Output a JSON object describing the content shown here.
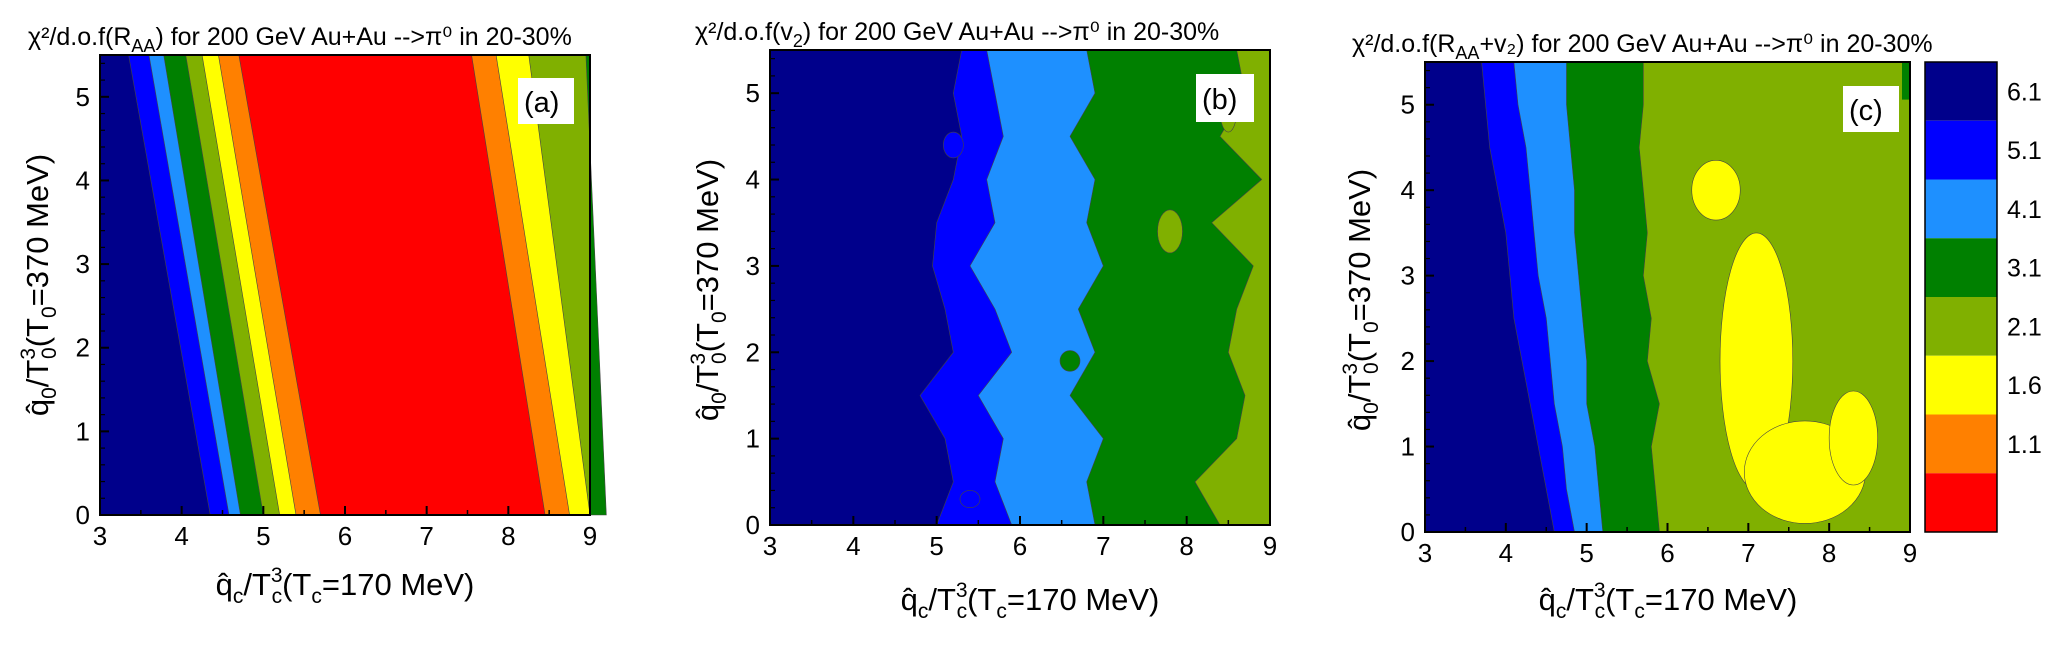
{
  "colors": {
    "bin7": "#00008b",
    "bin6": "#0000ff",
    "bin5": "#1e90ff",
    "bin4": "#008000",
    "bin3": "#80b000",
    "bin2": "#ffff00",
    "bin1": "#ff8000",
    "bin0": "#ff0000"
  },
  "chart_data": [
    {
      "type": "heatmap",
      "panel_label": "(a)",
      "title_prefix": "χ²/d.o.f(R",
      "title_sub": "AA",
      "title_suffix": ") for 200 GeV Au+Au -->π⁰ in 20-30%",
      "xlabel_hat": "q̂",
      "xlabel_sub": "c",
      "xlabel_rest": "/T",
      "xlabel_sup": "3",
      "xlabel_sub2": "c",
      "xlabel_paren": "(T",
      "xlabel_sub3": "c",
      "xlabel_end": "=170 MeV)",
      "ylabel_hat": "q̂",
      "ylabel_sub": "0",
      "ylabel_rest": "/T",
      "ylabel_sup": "3",
      "ylabel_sub2": "0",
      "ylabel_paren": "(T",
      "ylabel_sub3": "0",
      "ylabel_end": "=370 MeV)",
      "xlim": [
        3,
        9
      ],
      "ylim": [
        0,
        5.5
      ],
      "xticks": [
        "3",
        "4",
        "5",
        "6",
        "7",
        "8",
        "9"
      ],
      "yticks": [
        "0",
        "1",
        "2",
        "3",
        "4",
        "5"
      ],
      "contour_boundaries_left": [
        {
          "level": 6.1,
          "x_at_y0": 4.35,
          "x_at_ytop": 3.35
        },
        {
          "level": 5.1,
          "x_at_y0": 4.58,
          "x_at_ytop": 3.6
        },
        {
          "level": 4.1,
          "x_at_y0": 4.72,
          "x_at_ytop": 3.78
        },
        {
          "level": 3.1,
          "x_at_y0": 5.0,
          "x_at_ytop": 4.05
        },
        {
          "level": 2.1,
          "x_at_y0": 5.2,
          "x_at_ytop": 4.25
        },
        {
          "level": 1.6,
          "x_at_y0": 5.4,
          "x_at_ytop": 4.45
        },
        {
          "level": 1.1,
          "x_at_y0": 5.7,
          "x_at_ytop": 4.7
        }
      ],
      "contour_boundaries_right": [
        {
          "level": 1.1,
          "x_at_y0": 8.45,
          "x_at_ytop": 7.55
        },
        {
          "level": 1.6,
          "x_at_y0": 8.75,
          "x_at_ytop": 7.85
        },
        {
          "level": 2.1,
          "x_at_y0": 9.0,
          "x_at_ytop": 8.25
        },
        {
          "level": 3.1,
          "x_at_y0": 9.2,
          "x_at_ytop": 8.95
        }
      ]
    },
    {
      "type": "heatmap",
      "panel_label": "(b)",
      "title_prefix": "χ²/d.o.f(v",
      "title_sub": "2",
      "title_suffix": ") for 200 GeV Au+Au -->π⁰ in 20-30%",
      "xlabel_hat": "q̂",
      "xlabel_sub": "c",
      "xlabel_rest": "/T",
      "xlabel_sup": "3",
      "xlabel_sub2": "c",
      "xlabel_paren": "(T",
      "xlabel_sub3": "c",
      "xlabel_end": "=170 MeV)",
      "ylabel_hat": "q̂",
      "ylabel_sub": "0",
      "ylabel_rest": "/T",
      "ylabel_sup": "3",
      "ylabel_sub2": "0",
      "ylabel_paren": "(T",
      "ylabel_sub3": "0",
      "ylabel_end": "=370 MeV)",
      "xlim": [
        3,
        9
      ],
      "ylim": [
        0,
        5.5
      ],
      "xticks": [
        "3",
        "4",
        "5",
        "6",
        "7",
        "8",
        "9"
      ],
      "yticks": [
        "0",
        "1",
        "2",
        "3",
        "4",
        "5"
      ],
      "region_boundaries": [
        {
          "level": 6.1,
          "x_profile": [
            [
              0,
              5.0
            ],
            [
              0.5,
              5.2
            ],
            [
              1.0,
              5.1
            ],
            [
              1.5,
              4.8
            ],
            [
              2.0,
              5.2
            ],
            [
              2.5,
              5.1
            ],
            [
              3.0,
              4.95
            ],
            [
              3.5,
              5.0
            ],
            [
              4.0,
              5.2
            ],
            [
              4.5,
              5.3
            ],
            [
              5.0,
              5.2
            ],
            [
              5.5,
              5.3
            ]
          ]
        },
        {
          "level": 5.1,
          "x_profile": [
            [
              0,
              5.9
            ],
            [
              0.5,
              5.7
            ],
            [
              1.0,
              5.8
            ],
            [
              1.5,
              5.5
            ],
            [
              2.0,
              5.9
            ],
            [
              2.5,
              5.7
            ],
            [
              3.0,
              5.4
            ],
            [
              3.5,
              5.7
            ],
            [
              4.0,
              5.6
            ],
            [
              4.5,
              5.8
            ],
            [
              5.0,
              5.7
            ],
            [
              5.5,
              5.6
            ]
          ]
        },
        {
          "level": 4.1,
          "x_profile": [
            [
              0,
              6.9
            ],
            [
              0.5,
              6.8
            ],
            [
              1.0,
              7.0
            ],
            [
              1.5,
              6.6
            ],
            [
              2.0,
              6.9
            ],
            [
              2.5,
              6.7
            ],
            [
              3.0,
              7.0
            ],
            [
              3.5,
              6.8
            ],
            [
              4.0,
              6.9
            ],
            [
              4.5,
              6.6
            ],
            [
              5.0,
              6.9
            ],
            [
              5.5,
              6.8
            ]
          ]
        },
        {
          "level": 3.1,
          "x_profile": [
            [
              0,
              8.4
            ],
            [
              0.5,
              8.1
            ],
            [
              1.0,
              8.6
            ],
            [
              1.5,
              8.7
            ],
            [
              2.0,
              8.5
            ],
            [
              2.5,
              8.6
            ],
            [
              3.0,
              8.8
            ],
            [
              3.5,
              8.3
            ],
            [
              4.0,
              8.9
            ],
            [
              4.5,
              8.4
            ],
            [
              5.0,
              8.7
            ],
            [
              5.5,
              8.6
            ]
          ]
        }
      ]
    },
    {
      "type": "heatmap",
      "panel_label": "(c)",
      "title_prefix": "χ²/d.o.f(R",
      "title_sub": "AA",
      "title_suffix": "+v₂) for 200 GeV Au+Au -->π⁰ in 20-30%",
      "xlabel_hat": "q̂",
      "xlabel_sub": "c",
      "xlabel_rest": "/T",
      "xlabel_sup": "3",
      "xlabel_sub2": "c",
      "xlabel_paren": "(T",
      "xlabel_sub3": "c",
      "xlabel_end": "=170 MeV)",
      "ylabel_hat": "q̂",
      "ylabel_sub": "0",
      "ylabel_rest": "/T",
      "ylabel_sup": "3",
      "ylabel_sub2": "0",
      "ylabel_paren": "(T",
      "ylabel_sub3": "0",
      "ylabel_end": "=370 MeV)",
      "xlim": [
        3,
        9
      ],
      "ylim": [
        0,
        5.5
      ],
      "xticks": [
        "3",
        "4",
        "5",
        "6",
        "7",
        "8",
        "9"
      ],
      "yticks": [
        "0",
        "1",
        "2",
        "3",
        "4",
        "5"
      ],
      "region_boundaries": [
        {
          "level": 6.1,
          "x_profile": [
            [
              0,
              4.6
            ],
            [
              0.5,
              4.5
            ],
            [
              1.0,
              4.4
            ],
            [
              1.5,
              4.3
            ],
            [
              2.0,
              4.2
            ],
            [
              2.5,
              4.1
            ],
            [
              3.0,
              4.05
            ],
            [
              3.5,
              4.0
            ],
            [
              4.0,
              3.9
            ],
            [
              4.5,
              3.8
            ],
            [
              5.0,
              3.75
            ],
            [
              5.5,
              3.7
            ]
          ]
        },
        {
          "level": 5.1,
          "x_profile": [
            [
              0,
              4.85
            ],
            [
              0.5,
              4.75
            ],
            [
              1.0,
              4.7
            ],
            [
              1.5,
              4.6
            ],
            [
              2.0,
              4.55
            ],
            [
              2.5,
              4.5
            ],
            [
              3.0,
              4.4
            ],
            [
              3.5,
              4.35
            ],
            [
              4.0,
              4.3
            ],
            [
              4.5,
              4.25
            ],
            [
              5.0,
              4.15
            ],
            [
              5.5,
              4.1
            ]
          ]
        },
        {
          "level": 4.1,
          "x_profile": [
            [
              0,
              5.2
            ],
            [
              0.5,
              5.15
            ],
            [
              1.0,
              5.1
            ],
            [
              1.5,
              5.0
            ],
            [
              2.0,
              5.0
            ],
            [
              2.5,
              4.95
            ],
            [
              3.0,
              4.9
            ],
            [
              3.5,
              4.85
            ],
            [
              4.0,
              4.85
            ],
            [
              4.5,
              4.8
            ],
            [
              5.0,
              4.75
            ],
            [
              5.5,
              4.75
            ]
          ]
        },
        {
          "level": 3.1,
          "x_profile": [
            [
              0,
              5.9
            ],
            [
              0.5,
              5.85
            ],
            [
              1.0,
              5.8
            ],
            [
              1.5,
              5.9
            ],
            [
              2.0,
              5.75
            ],
            [
              2.5,
              5.8
            ],
            [
              3.0,
              5.7
            ],
            [
              3.5,
              5.75
            ],
            [
              4.0,
              5.7
            ],
            [
              4.5,
              5.65
            ],
            [
              5.0,
              5.7
            ],
            [
              5.5,
              5.7
            ]
          ]
        }
      ],
      "islands_level_1_6": [
        {
          "cx": 6.6,
          "cy": 4.0,
          "rx": 0.3,
          "ry": 0.35
        },
        {
          "cx": 7.1,
          "cy": 2.0,
          "rx": 0.45,
          "ry": 1.5
        },
        {
          "cx": 7.7,
          "cy": 0.7,
          "rx": 0.75,
          "ry": 0.6
        },
        {
          "cx": 8.3,
          "cy": 1.1,
          "rx": 0.3,
          "ry": 0.55
        }
      ]
    }
  ],
  "colorbar": {
    "bins_top_to_bottom": [
      "bin7",
      "bin6",
      "bin5",
      "bin4",
      "bin3",
      "bin2",
      "bin1",
      "bin0"
    ],
    "tick_labels": [
      "6.1",
      "5.1",
      "4.1",
      "3.1",
      "2.1",
      "1.6",
      "1.1"
    ]
  }
}
